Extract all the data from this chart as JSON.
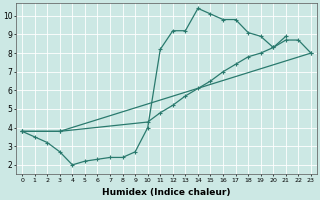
{
  "xlabel": "Humidex (Indice chaleur)",
  "bg_color": "#cce8e4",
  "line_color": "#2a7a6e",
  "marker": "+",
  "markersize": 3,
  "linewidth": 0.9,
  "xlim": [
    -0.5,
    23.5
  ],
  "ylim": [
    1.5,
    10.7
  ],
  "xticks": [
    0,
    1,
    2,
    3,
    4,
    5,
    6,
    7,
    8,
    9,
    10,
    11,
    12,
    13,
    14,
    15,
    16,
    17,
    18,
    19,
    20,
    21,
    22,
    23
  ],
  "yticks": [
    2,
    3,
    4,
    5,
    6,
    7,
    8,
    9,
    10
  ],
  "line1_x": [
    0,
    1,
    2,
    3,
    4,
    5,
    6,
    7,
    8,
    9,
    10,
    11,
    12,
    13,
    14,
    15,
    16,
    17,
    18,
    19,
    20,
    21
  ],
  "line1_y": [
    3.8,
    3.5,
    3.2,
    2.7,
    2.0,
    2.2,
    2.3,
    2.4,
    2.4,
    2.7,
    4.0,
    8.2,
    9.2,
    9.2,
    10.4,
    10.1,
    9.8,
    9.8,
    9.1,
    8.9,
    8.3,
    8.9
  ],
  "line2_x": [
    0,
    3,
    23
  ],
  "line2_y": [
    3.8,
    3.8,
    8.0
  ],
  "line3_x": [
    0,
    3,
    10,
    11,
    12,
    13,
    14,
    15,
    16,
    17,
    18,
    19,
    20,
    21,
    22,
    23
  ],
  "line3_y": [
    3.8,
    3.8,
    4.3,
    4.8,
    5.2,
    5.7,
    6.1,
    6.5,
    7.0,
    7.4,
    7.8,
    8.0,
    8.3,
    8.7,
    8.7,
    8.0
  ]
}
